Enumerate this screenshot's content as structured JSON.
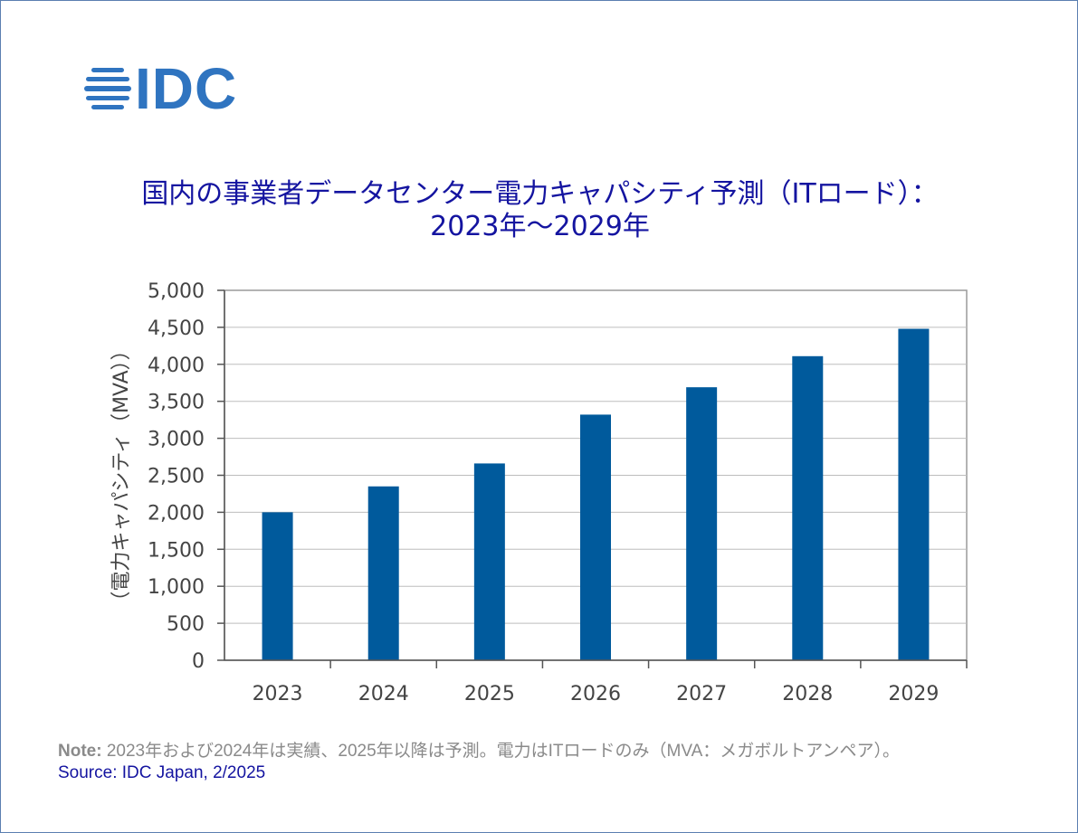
{
  "logo": {
    "text": "IDC"
  },
  "title_line1": "国内の事業者データセンター電力キャパシティ予測（ITロード）：",
  "title_line2": "2023年～2029年",
  "note": {
    "label": "Note:",
    "text": "2023年および2024年は実績、2025年以降は予測。電力はITロードのみ（MVA：メガボルトアンペア）。"
  },
  "source": "Source: IDC Japan, 2/2025",
  "colors": {
    "bar": "#005a9c",
    "title": "#1414a0",
    "grid": "#bdbdbd"
  },
  "chart_data": {
    "type": "bar",
    "title": "国内の事業者データセンター電力キャパシティ予測（ITロード）： 2023年～2029年",
    "xlabel": "",
    "ylabel": "（電力キャパシティ（MVA））",
    "categories": [
      "2023",
      "2024",
      "2025",
      "2026",
      "2027",
      "2028",
      "2029"
    ],
    "values": [
      2000,
      2350,
      2660,
      3320,
      3690,
      4110,
      4480
    ],
    "ylim": [
      0,
      5000
    ],
    "yticks": [
      0,
      500,
      1000,
      1500,
      2000,
      2500,
      3000,
      3500,
      4000,
      4500,
      5000
    ],
    "ytick_labels": [
      "0",
      "500",
      "1,000",
      "1,500",
      "2,000",
      "2,500",
      "3,000",
      "3,500",
      "4,000",
      "4,500",
      "5,000"
    ],
    "grid": true,
    "legend": "none"
  }
}
